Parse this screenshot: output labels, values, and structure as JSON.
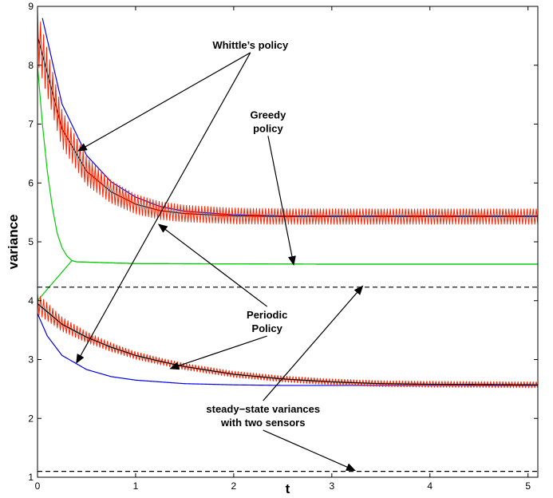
{
  "chart_data": {
    "type": "line",
    "title": "",
    "xlabel": "t",
    "ylabel": "variance",
    "xlim": [
      0,
      5.1
    ],
    "ylim": [
      1,
      9
    ],
    "xticks": [
      0,
      1,
      2,
      3,
      4,
      5
    ],
    "yticks": [
      1,
      2,
      3,
      4,
      5,
      6,
      7,
      8,
      9
    ],
    "tick_labels_x": [
      "0",
      "1",
      "2",
      "3",
      "4",
      "5"
    ],
    "tick_labels_y": [
      "1",
      "2",
      "3",
      "4",
      "5",
      "6",
      "7",
      "8",
      "9"
    ],
    "grid": false,
    "colors": {
      "whittle": "#0000ee",
      "periodic": "#ff2200",
      "periodic_mean": "#000000",
      "greedy": "#00cc00",
      "steady": "#000000"
    },
    "series": [
      {
        "key": "whittle_upper",
        "color": "whittle",
        "dash": false,
        "x": [
          0.05,
          0.25,
          0.5,
          0.75,
          1.0,
          1.25,
          1.5,
          2.0,
          2.5,
          3.0,
          4.0,
          5.1
        ],
        "y": [
          8.8,
          7.34,
          6.47,
          6.02,
          5.76,
          5.6,
          5.52,
          5.46,
          5.44,
          5.44,
          5.44,
          5.44
        ]
      },
      {
        "key": "periodic_mean_upper",
        "color": "periodic_mean",
        "dash": false,
        "x": [
          0.0,
          0.25,
          0.5,
          0.75,
          1.0,
          1.25,
          1.5,
          2.0,
          2.5,
          3.0,
          4.0,
          5.1
        ],
        "y": [
          8.5,
          6.92,
          6.2,
          5.85,
          5.64,
          5.53,
          5.48,
          5.44,
          5.43,
          5.43,
          5.43,
          5.43
        ]
      },
      {
        "key": "periodic_upper",
        "color": "periodic",
        "dash": false,
        "oscillation": 0.13,
        "x": [
          0.0,
          0.25,
          0.5,
          0.75,
          1.0,
          1.25,
          1.5,
          2.0,
          2.5,
          3.0,
          4.0,
          5.1
        ],
        "y": [
          8.5,
          6.92,
          6.2,
          5.85,
          5.64,
          5.53,
          5.48,
          5.44,
          5.43,
          5.43,
          5.43,
          5.43
        ]
      },
      {
        "key": "greedy_upper",
        "color": "greedy",
        "dash": false,
        "x": [
          0.0,
          0.05,
          0.1,
          0.15,
          0.2,
          0.25,
          0.3,
          0.35,
          0.4,
          1.0,
          3.0,
          5.1
        ],
        "y": [
          8.0,
          7.0,
          6.2,
          5.6,
          5.15,
          4.9,
          4.76,
          4.68,
          4.66,
          4.63,
          4.62,
          4.62
        ]
      },
      {
        "key": "greedy_lower",
        "color": "greedy",
        "dash": false,
        "x": [
          0.0,
          0.35,
          0.4,
          1.0,
          3.0,
          5.1
        ],
        "y": [
          4.0,
          4.68,
          4.66,
          4.63,
          4.62,
          4.62
        ]
      },
      {
        "key": "whittle_lower",
        "color": "whittle",
        "dash": false,
        "x": [
          0.0,
          0.1,
          0.25,
          0.5,
          0.75,
          1.0,
          1.5,
          2.0,
          2.5,
          3.0,
          4.0,
          5.1
        ],
        "y": [
          3.78,
          3.4,
          3.07,
          2.83,
          2.71,
          2.65,
          2.59,
          2.57,
          2.56,
          2.56,
          2.56,
          2.56
        ]
      },
      {
        "key": "periodic_lower",
        "color": "periodic",
        "dash": false,
        "oscillation": 0.05,
        "x": [
          0.0,
          0.25,
          0.5,
          0.75,
          1.0,
          1.25,
          1.5,
          2.0,
          2.5,
          3.0,
          3.5,
          4.0,
          5.1
        ],
        "y": [
          3.95,
          3.6,
          3.38,
          3.21,
          3.07,
          2.97,
          2.88,
          2.75,
          2.67,
          2.62,
          2.59,
          2.58,
          2.57
        ]
      },
      {
        "key": "periodic_mean_lower",
        "color": "periodic_mean",
        "dash": false,
        "x": [
          0.0,
          0.25,
          0.5,
          0.75,
          1.0,
          1.25,
          1.5,
          2.0,
          2.5,
          3.0,
          3.5,
          4.0,
          5.1
        ],
        "y": [
          3.95,
          3.6,
          3.38,
          3.21,
          3.07,
          2.97,
          2.88,
          2.75,
          2.67,
          2.62,
          2.59,
          2.58,
          2.57
        ]
      },
      {
        "key": "steady_upper",
        "color": "steady",
        "dash": true,
        "x": [
          0,
          5.1
        ],
        "y": [
          4.23,
          4.23
        ]
      },
      {
        "key": "steady_lower",
        "color": "steady",
        "dash": true,
        "x": [
          0,
          5.1
        ],
        "y": [
          1.1,
          1.1
        ]
      }
    ],
    "annotations": [
      {
        "lines": [
          "Whittle’s policy"
        ],
        "x": 2.17,
        "y": 8.35,
        "arrows": [
          [
            0.42,
            6.55
          ],
          [
            0.4,
            2.95
          ]
        ]
      },
      {
        "lines": [
          "Greedy",
          "policy"
        ],
        "x": 2.35,
        "y": 7.05,
        "arrows": [
          [
            2.61,
            4.62
          ]
        ]
      },
      {
        "lines": [
          "Periodic",
          "Policy"
        ],
        "x": 2.34,
        "y": 3.65,
        "arrows": [
          [
            1.24,
            5.29
          ],
          [
            1.36,
            2.85
          ]
        ]
      },
      {
        "lines": [
          "steady−state variances",
          "with two sensors"
        ],
        "x": 2.3,
        "y": 2.05,
        "arrows": [
          [
            3.31,
            4.24
          ],
          [
            3.23,
            1.12
          ]
        ]
      }
    ]
  }
}
